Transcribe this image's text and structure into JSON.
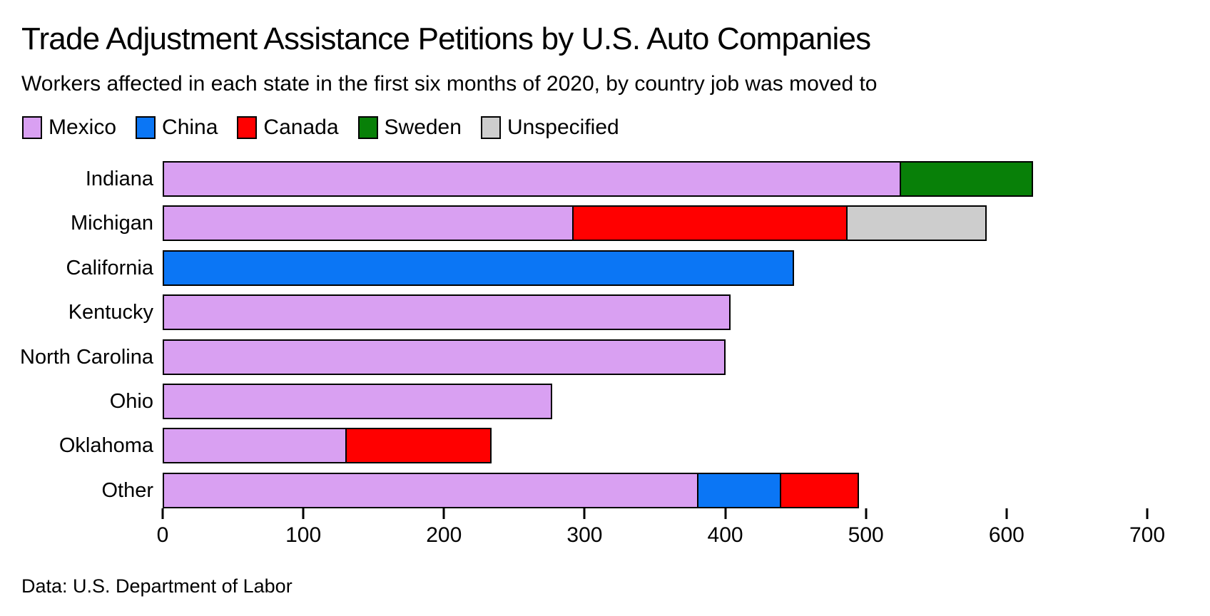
{
  "chart_data": {
    "type": "bar",
    "orientation": "horizontal",
    "stacked": true,
    "title": "Trade Adjustment Assistance Petitions by U.S. Auto Companies",
    "subtitle": "Workers affected in each state in the first six months of 2020, by country job was moved to",
    "source": "Data: U.S. Department of Labor",
    "categories": [
      "Indiana",
      "Michigan",
      "California",
      "Kentucky",
      "North Carolina",
      "Ohio",
      "Oklahoma",
      "Other"
    ],
    "series": [
      {
        "name": "Mexico",
        "color": "#D9A0F2",
        "values": [
          525,
          292,
          0,
          404,
          400,
          277,
          131,
          381
        ]
      },
      {
        "name": "China",
        "color": "#0B76F5",
        "values": [
          0,
          0,
          449,
          0,
          0,
          0,
          0,
          60
        ]
      },
      {
        "name": "Canada",
        "color": "#FF0000",
        "values": [
          0,
          196,
          0,
          0,
          0,
          0,
          104,
          56
        ]
      },
      {
        "name": "Sweden",
        "color": "#088008",
        "values": [
          95,
          0,
          0,
          0,
          0,
          0,
          0,
          0
        ]
      },
      {
        "name": "Unspecified",
        "color": "#CDCDCD",
        "values": [
          0,
          100,
          0,
          0,
          0,
          0,
          0,
          0
        ]
      }
    ],
    "xticks": [
      0,
      100,
      200,
      300,
      400,
      500,
      600,
      700
    ],
    "xlim": [
      0,
      700
    ],
    "grid": false,
    "legend_position": "top",
    "bar_border_color": "#000000"
  }
}
